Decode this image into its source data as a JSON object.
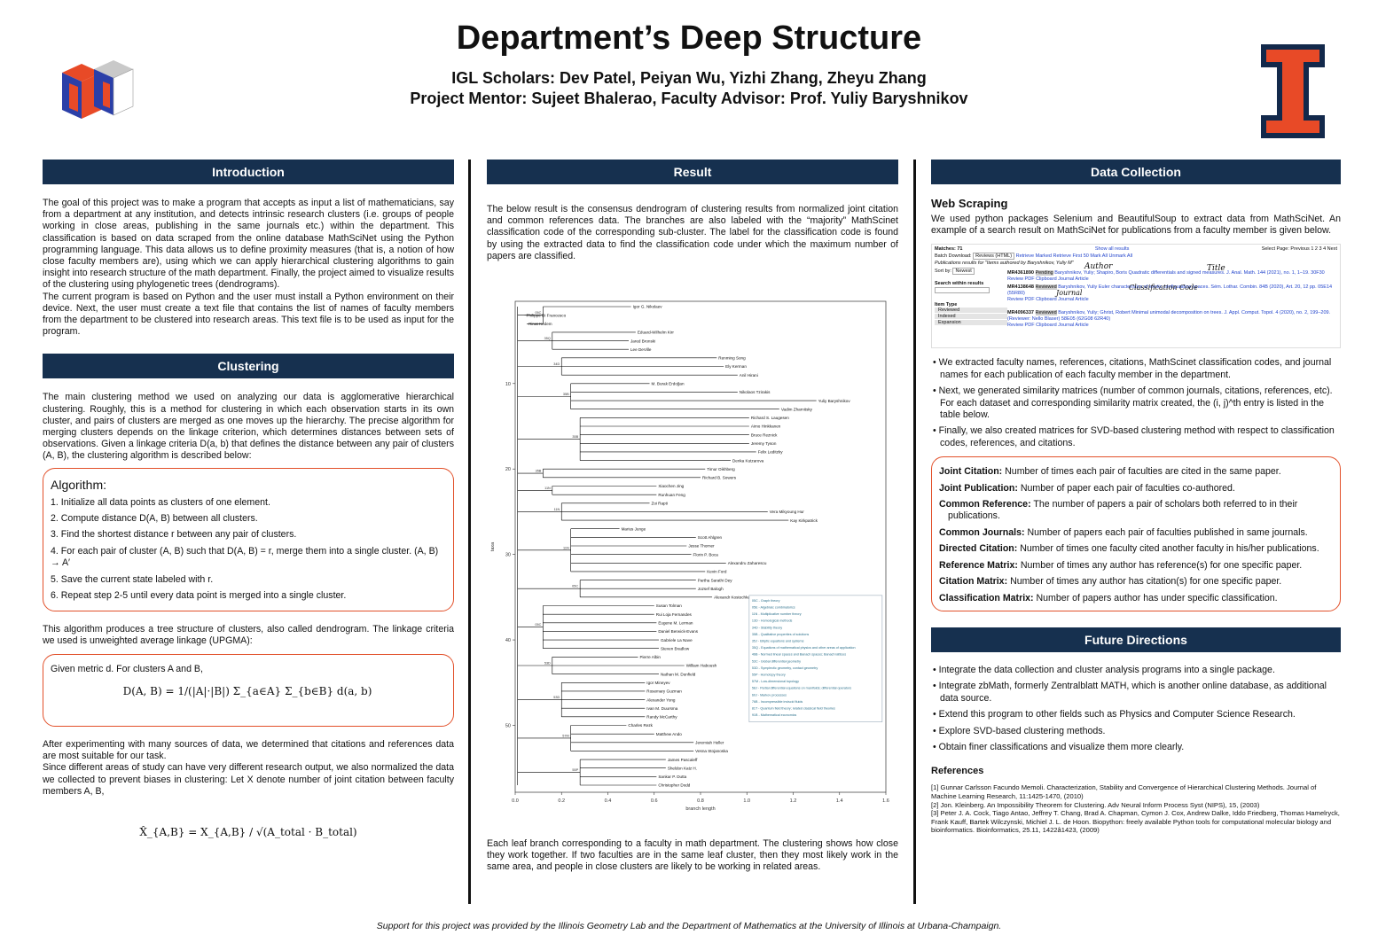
{
  "header": {
    "title": "Department’s Deep Structure",
    "authors": "IGL Scholars: Dev Patel, Peiyan Wu, Yizhi Zhang, Zheyu Zhang",
    "mentors": "Project Mentor: Sujeet Bhalerao, Faculty Advisor: Prof. Yuliy Baryshnikov"
  },
  "intro": {
    "heading": "Introduction",
    "p1": "The goal of this project was to make a program that accepts as input a list of mathematicians, say from a department at any institution, and detects intrinsic research clusters (i.e. groups of people working in close areas, publishing in the same journals etc.) within the department. This classification is based on data scraped from the online database MathSciNet using the Python programming language. This data allows us to define proximity measures (that is, a notion of how close faculty members are), using which we can apply hierarchical clustering algorithms to gain insight into research structure of the math department. Finally, the project aimed to visualize results of the clustering using phylogenetic trees (dendrograms).",
    "p2": "The current program is based on Python and the user must install a Python environment on their device. Next, the user must create a text file that contains the list of names of faculty members from the department to be clustered into research areas. This text file is to be used as input for the program."
  },
  "clustering": {
    "heading": "Clustering",
    "p1": "The main clustering method we used on analyzing our data is agglomerative hierarchical clustering. Roughly, this is a method for clustering in which each observation starts in its own cluster, and pairs of clusters are merged as one moves up the hierarchy. The precise algorithm for merging clusters depends on the linkage criterion, which determines distances between sets of observations. Given a linkage criteria D(a, b) that defines the distance between any pair of clusters (A, B), the clustering algorithm is described below:",
    "algo_title": "Algorithm:",
    "steps": [
      "1. Initialize all data points as clusters of one element.",
      "2. Compute distance D(A, B) between all clusters.",
      "3. Find the shortest distance r between any pair of clusters.",
      "4. For each pair of cluster (A, B) such that D(A, B) = r, merge them into a single cluster. (A, B) → A′",
      "5. Save the current state labeled with r.",
      "6. Repeat step 2-5 until every data point is merged into a single cluster."
    ],
    "p2": "This algorithm produces a tree structure of clusters, also called dendrogram. The linkage criteria we used is unweighted average linkage (UPGMA):",
    "metric_intro": "Given metric d. For clusters A and B,",
    "formula": "D(A, B) = 1/(|A|·|B|) Σ_{a∈A} Σ_{b∈B} d(a, b)",
    "p3": "After experimenting with many sources of data, we determined that citations and references data are most suitable for our task.",
    "p4": "Since different areas of study can have very different research output, we also normalized the data we collected to prevent biases in clustering: Let X denote number of joint citation between faculty members A, B,",
    "formula2": "X̂_{A,B} = X_{A,B} / √(A_total · B_total)"
  },
  "result": {
    "heading": "Result",
    "p1": "The below result is the consensus dendrogram of clustering results from normalized joint citation and common references data. The branches are also labeled with the “majority” MathScinet classification code of the corresponding sub-cluster. The label for the classification code is found by using the extracted data to find the classification code under which the maximum number of papers are classified.",
    "p2": "Each leaf branch corresponding to a faculty in math department. The clustering shows how close they work together. If two faculties are in the same leaf cluster, then they most likely work in the same area, and people in close clusters are likely to be working in related areas."
  },
  "chart_data": {
    "type": "dendrogram",
    "xlabel": "branch length",
    "ylabel": "taxa",
    "xlim": [
      0.0,
      1.6
    ],
    "xticks": [
      "0.0",
      "0.2",
      "0.4",
      "0.6",
      "0.8",
      "1.0",
      "1.2",
      "1.4",
      "1.6"
    ],
    "yticks": [
      "10",
      "20",
      "30",
      "40",
      "50"
    ],
    "leaves": [
      {
        "name": "Igor G. Nikolaev",
        "depth": 0.5
      },
      {
        "name": "Philippe Di Francesco",
        "depth": 0.04
      },
      {
        "name": "Rinat Kedem",
        "depth": 0.05
      },
      {
        "name": "Eduard-Wilhelm Kirr",
        "depth": 0.52
      },
      {
        "name": "Jared Bronski",
        "depth": 0.49
      },
      {
        "name": "Lee DeVille",
        "depth": 0.49
      },
      {
        "name": "Renming Song",
        "depth": 0.87
      },
      {
        "name": "Ely Kerman",
        "depth": 0.9
      },
      {
        "name": "Anil Hirani",
        "depth": 0.96
      },
      {
        "name": "M. Burak Erdoğan",
        "depth": 0.58
      },
      {
        "name": "Nikolaos Tzirakis",
        "depth": 0.96
      },
      {
        "name": "Yuliy Baryshnikov",
        "depth": 1.3
      },
      {
        "name": "Vadim Zharnitsky",
        "depth": 1.14
      },
      {
        "name": "Richard S. Laugesen",
        "depth": 1.01
      },
      {
        "name": "Aimo Hinkkanen",
        "depth": 1.01
      },
      {
        "name": "Bruce Reznick",
        "depth": 1.01
      },
      {
        "name": "Jeremy Tyson",
        "depth": 1.01
      },
      {
        "name": "Felix Leditzky",
        "depth": 1.04
      },
      {
        "name": "Denka Kutzarova",
        "depth": 0.93
      },
      {
        "name": "Timur Oikhberg",
        "depth": 0.82
      },
      {
        "name": "Richard B. Sowers",
        "depth": 0.8
      },
      {
        "name": "Xiaochen Jing",
        "depth": 0.61
      },
      {
        "name": "Runhuan Feng",
        "depth": 0.61
      },
      {
        "name": "Zoi Rapti",
        "depth": 0.58
      },
      {
        "name": "Vera Mikyoung Hur",
        "depth": 1.09
      },
      {
        "name": "Kay Kirkpatrick",
        "depth": 1.18
      },
      {
        "name": "Marius Junge",
        "depth": 0.45
      },
      {
        "name": "Scott Ahlgren",
        "depth": 0.78
      },
      {
        "name": "Jesse Thorner",
        "depth": 0.74
      },
      {
        "name": "Florin P. Boca",
        "depth": 0.76
      },
      {
        "name": "Alexandru Zaharescu",
        "depth": 0.91
      },
      {
        "name": "Kevin Ford",
        "depth": 0.82
      },
      {
        "name": "Partha Sarathi Dey",
        "depth": 0.78
      },
      {
        "name": "Jozsef Balogh",
        "depth": 0.78
      },
      {
        "name": "Alexandr Kostochka",
        "depth": 0.85
      },
      {
        "name": "Susan Tolman",
        "depth": 0.6
      },
      {
        "name": "Rui Loja Fernandes",
        "depth": 0.6
      },
      {
        "name": "Eugene M. Lerman",
        "depth": 0.61
      },
      {
        "name": "Daniel Berwick-Evans",
        "depth": 0.61
      },
      {
        "name": "Gabriele La Nave",
        "depth": 0.62
      },
      {
        "name": "Steven Bradlow",
        "depth": 0.62
      },
      {
        "name": "Pierre Albin",
        "depth": 0.53
      },
      {
        "name": "William Haboush",
        "depth": 0.73
      },
      {
        "name": "Nathan M. Dunfield",
        "depth": 0.62
      },
      {
        "name": "Igor Mineyev",
        "depth": 0.56
      },
      {
        "name": "Rosemary Guzman",
        "depth": 0.56
      },
      {
        "name": "Alexander Yong",
        "depth": 0.56
      },
      {
        "name": "Ivan M. Duursma",
        "depth": 0.56
      },
      {
        "name": "Randy McCarthy",
        "depth": 0.56
      },
      {
        "name": "Charles Rezk",
        "depth": 0.48
      },
      {
        "name": "Matthew Ando",
        "depth": 0.6
      },
      {
        "name": "Jeremiah Heller",
        "depth": 0.77
      },
      {
        "name": "Vesna Stojanoska",
        "depth": 0.77
      },
      {
        "name": "James Pascaleff",
        "depth": 0.65
      },
      {
        "name": "Sheldon Katz H.",
        "depth": 0.65
      },
      {
        "name": "Sankar P. Dutta",
        "depth": 0.61
      },
      {
        "name": "Christopher Dodd",
        "depth": 0.61
      }
    ],
    "internal_labels": [
      "05C",
      "35Q",
      "34D",
      "35B",
      "35B",
      "35B",
      "11N",
      "11N",
      "11N",
      "05C",
      "05C",
      "53D",
      "53D",
      "57M",
      "55P",
      "55P",
      "81T",
      "81T",
      "60J",
      "60J",
      "46B",
      "46B",
      "53C",
      "60J",
      "35R"
    ],
    "legend": [
      "05C - Graph theory",
      "05E - Algebraic combinatorics",
      "11N - Multiplicative number theory",
      "13D - Homological methods",
      "34D - Stability theory",
      "35B - Qualitative properties of solutions",
      "35J - Elliptic equations and systems",
      "35Q - Equations of mathematical physics and other areas of application",
      "46B - Normed linear spaces and Banach spaces; Banach lattices",
      "53C - Global differential geometry",
      "53D - Symplectic geometry, contact geometry",
      "55P - Homotopy theory",
      "57M - Low-dimensional topology",
      "58J - Partial differential equations on manifolds; differential operators",
      "60J - Markov processes",
      "76B - Incompressible inviscid fluids",
      "81T - Quantum field theory; related classical field theories",
      "91B - Mathematical economics"
    ]
  },
  "data_collection": {
    "heading": "Data Collection",
    "sub": "Web Scraping",
    "p1": "We used python packages Selenium and BeautifulSoup to extract data from MathSciNet. An example of a search result on MathSciNet for publications from a faculty member is given below.",
    "shot": {
      "matches": "Matches: 71",
      "show_all": "Show all results",
      "select_page": "Select Page: Previous 1 2 3 4 Next",
      "batch": "Batch Download:",
      "batch_sel": "Reviews (HTML)",
      "batch_links": "Retrieve Marked  Retrieve First 50  Mark All  Unmark All",
      "pub_results": "Publications results for \"Items authored by Baryshnikov, Yuliy M\"",
      "sort": "Sort by:",
      "sort_sel": "Newest",
      "search_within": "Search within results",
      "item_type": "Item Type",
      "types": [
        "Reviewed",
        "Indexed",
        "Expansion"
      ],
      "rec1_id": "MR4361890",
      "rec1_badge": "Pending",
      "rec1": "Baryshnikov, Yuliy; Shapiro, Boris Quadratic differentials and signed measures. J. Anal. Math. 144 (2021), no. 1, 1–19. 30F30",
      "rec2_id": "MR4138648",
      "rec2_badge": "Reviewed",
      "rec2": "Baryshnikov, Yuliy Euler characteristics of exotic configuration spaces. Sém. Lothar. Combin. 84B (2020), Art. 20, 12 pp. 05E14 (55R80)",
      "rec3_id": "MR4096337",
      "rec3_badge": "Reviewed",
      "rec3": "Baryshnikov, Yuliy; Ghrist, Robert Minimal unimodal decomposition on trees. J. Appl. Comput. Topol. 4 (2020), no. 2, 199–209. (Reviewer: Nello Blaser) 58E05 (62G08 62R40)",
      "rec_links": "Review PDF  Clipboard  Journal  Article",
      "ann_author": "Author",
      "ann_title": "Title",
      "ann_journal": "Journal",
      "ann_code": "Classification Code"
    },
    "bullets": [
      "• We extracted faculty names, references, citations, MathScinet classification codes, and journal names for each publication of each faculty member in the department.",
      "• Next, we generated similarity matrices (number of common journals, citations, references, etc). For each dataset and corresponding similarity matrix created, the (i, j)^th entry is listed in the table below.",
      "• Finally, we also created matrices for SVD-based clustering method with respect to classification codes, references, and citations."
    ],
    "defs": [
      {
        "term": "Joint Citation:",
        "desc": "Number of times each pair of faculties are cited in the same paper."
      },
      {
        "term": "Joint Publication:",
        "desc": "Number of paper each pair of faculties co-authored."
      },
      {
        "term": "Common Reference:",
        "desc": "The number of papers a pair of scholars both referred to in their publications."
      },
      {
        "term": "Common Journals:",
        "desc": "Number of papers each pair of faculties published in same journals."
      },
      {
        "term": "Directed Citation:",
        "desc": "Number of times one faculty cited another faculty in his/her publications."
      },
      {
        "term": "Reference Matrix:",
        "desc": "Number of times any author has reference(s) for one specific paper."
      },
      {
        "term": "Citation Matrix:",
        "desc": "Number of times any author has citation(s) for one specific paper."
      },
      {
        "term": "Classification Matrix:",
        "desc": "Number of papers author has under specific classification."
      }
    ]
  },
  "future": {
    "heading": "Future Directions",
    "items": [
      "• Integrate the data collection and cluster analysis programs into a single package.",
      "• Integrate zbMath, formerly Zentralblatt MATH, which is another online database, as additional data source.",
      "• Extend this program to other fields such as Physics and Computer Science Research.",
      "• Explore SVD-based clustering methods.",
      "• Obtain finer classifications and visualize them more clearly."
    ]
  },
  "references": {
    "heading": "References",
    "items": [
      "[1] Gunnar Carlsson Facundo Memoli. Characterization, Stability and Convergence of Hierarchical Clustering Methods. Journal of Machine Learning Research, 11:1425-1470, (2010)",
      "[2] Jon. Kleinberg. An Impossibility Theorem for Clustering. Adv Neural Inform Process Syst (NIPS), 15, (2003)",
      "[3] Peter J. A. Cock, Tiago Antao, Jeffrey T. Chang, Brad A. Chapman, Cymon J. Cox, Andrew Dalke, Iddo Friedberg, Thomas Hamelryck, Frank Kauff, Bartek Wilczynski, Michiel J. L. de Hoon. Biopython: freely available Python tools for computational molecular biology and bioinformatics. Bioinformatics, 25.11, 1422â1423, (2009)"
    ]
  },
  "footer": "Support for this project was provided by the Illinois Geometry Lab and the Department of Mathematics at the University of Illinois at Urbana-Champaign.",
  "colors": {
    "header_bg": "#16304f",
    "accent": "#e2502a",
    "illini_blue": "#13294b",
    "illini_orange": "#e84a27"
  }
}
